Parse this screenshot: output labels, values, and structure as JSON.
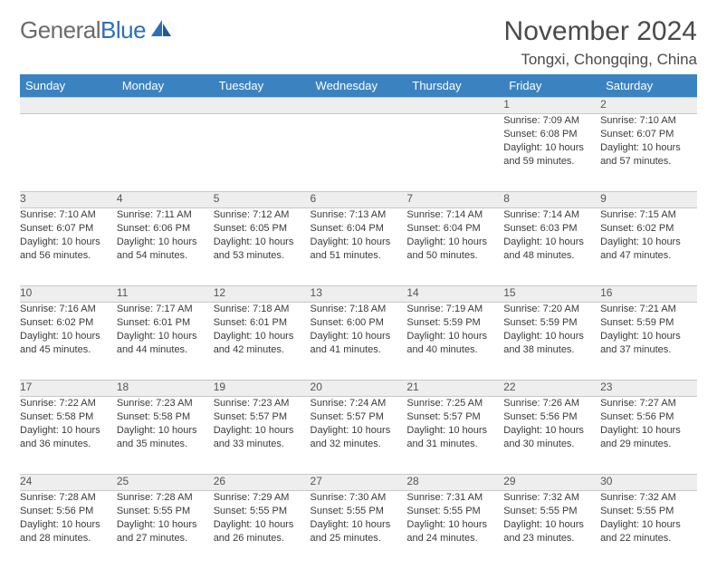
{
  "logo": {
    "word1": "General",
    "word2": "Blue"
  },
  "title": "November 2024",
  "location": "Tongxi, Chongqing, China",
  "colors": {
    "header_bg": "#3b83c0",
    "header_text": "#ffffff",
    "daynum_bg": "#eeeeee",
    "grid_line": "#c8c8c8",
    "body_text": "#3a3a3a",
    "title_text": "#4a4a4a",
    "logo_gray": "#6b6b6b",
    "logo_blue": "#2e6fb4",
    "page_bg": "#ffffff"
  },
  "fonts": {
    "title_size": 30,
    "location_size": 17,
    "header_size": 13,
    "daynum_size": 12,
    "body_size": 11
  },
  "day_headers": [
    "Sunday",
    "Monday",
    "Tuesday",
    "Wednesday",
    "Thursday",
    "Friday",
    "Saturday"
  ],
  "weeks": [
    {
      "nums": [
        "",
        "",
        "",
        "",
        "",
        "1",
        "2"
      ],
      "cells": [
        [],
        [],
        [],
        [],
        [],
        [
          "Sunrise: 7:09 AM",
          "Sunset: 6:08 PM",
          "Daylight: 10 hours",
          "and 59 minutes."
        ],
        [
          "Sunrise: 7:10 AM",
          "Sunset: 6:07 PM",
          "Daylight: 10 hours",
          "and 57 minutes."
        ]
      ]
    },
    {
      "nums": [
        "3",
        "4",
        "5",
        "6",
        "7",
        "8",
        "9"
      ],
      "cells": [
        [
          "Sunrise: 7:10 AM",
          "Sunset: 6:07 PM",
          "Daylight: 10 hours",
          "and 56 minutes."
        ],
        [
          "Sunrise: 7:11 AM",
          "Sunset: 6:06 PM",
          "Daylight: 10 hours",
          "and 54 minutes."
        ],
        [
          "Sunrise: 7:12 AM",
          "Sunset: 6:05 PM",
          "Daylight: 10 hours",
          "and 53 minutes."
        ],
        [
          "Sunrise: 7:13 AM",
          "Sunset: 6:04 PM",
          "Daylight: 10 hours",
          "and 51 minutes."
        ],
        [
          "Sunrise: 7:14 AM",
          "Sunset: 6:04 PM",
          "Daylight: 10 hours",
          "and 50 minutes."
        ],
        [
          "Sunrise: 7:14 AM",
          "Sunset: 6:03 PM",
          "Daylight: 10 hours",
          "and 48 minutes."
        ],
        [
          "Sunrise: 7:15 AM",
          "Sunset: 6:02 PM",
          "Daylight: 10 hours",
          "and 47 minutes."
        ]
      ]
    },
    {
      "nums": [
        "10",
        "11",
        "12",
        "13",
        "14",
        "15",
        "16"
      ],
      "cells": [
        [
          "Sunrise: 7:16 AM",
          "Sunset: 6:02 PM",
          "Daylight: 10 hours",
          "and 45 minutes."
        ],
        [
          "Sunrise: 7:17 AM",
          "Sunset: 6:01 PM",
          "Daylight: 10 hours",
          "and 44 minutes."
        ],
        [
          "Sunrise: 7:18 AM",
          "Sunset: 6:01 PM",
          "Daylight: 10 hours",
          "and 42 minutes."
        ],
        [
          "Sunrise: 7:18 AM",
          "Sunset: 6:00 PM",
          "Daylight: 10 hours",
          "and 41 minutes."
        ],
        [
          "Sunrise: 7:19 AM",
          "Sunset: 5:59 PM",
          "Daylight: 10 hours",
          "and 40 minutes."
        ],
        [
          "Sunrise: 7:20 AM",
          "Sunset: 5:59 PM",
          "Daylight: 10 hours",
          "and 38 minutes."
        ],
        [
          "Sunrise: 7:21 AM",
          "Sunset: 5:59 PM",
          "Daylight: 10 hours",
          "and 37 minutes."
        ]
      ]
    },
    {
      "nums": [
        "17",
        "18",
        "19",
        "20",
        "21",
        "22",
        "23"
      ],
      "cells": [
        [
          "Sunrise: 7:22 AM",
          "Sunset: 5:58 PM",
          "Daylight: 10 hours",
          "and 36 minutes."
        ],
        [
          "Sunrise: 7:23 AM",
          "Sunset: 5:58 PM",
          "Daylight: 10 hours",
          "and 35 minutes."
        ],
        [
          "Sunrise: 7:23 AM",
          "Sunset: 5:57 PM",
          "Daylight: 10 hours",
          "and 33 minutes."
        ],
        [
          "Sunrise: 7:24 AM",
          "Sunset: 5:57 PM",
          "Daylight: 10 hours",
          "and 32 minutes."
        ],
        [
          "Sunrise: 7:25 AM",
          "Sunset: 5:57 PM",
          "Daylight: 10 hours",
          "and 31 minutes."
        ],
        [
          "Sunrise: 7:26 AM",
          "Sunset: 5:56 PM",
          "Daylight: 10 hours",
          "and 30 minutes."
        ],
        [
          "Sunrise: 7:27 AM",
          "Sunset: 5:56 PM",
          "Daylight: 10 hours",
          "and 29 minutes."
        ]
      ]
    },
    {
      "nums": [
        "24",
        "25",
        "26",
        "27",
        "28",
        "29",
        "30"
      ],
      "cells": [
        [
          "Sunrise: 7:28 AM",
          "Sunset: 5:56 PM",
          "Daylight: 10 hours",
          "and 28 minutes."
        ],
        [
          "Sunrise: 7:28 AM",
          "Sunset: 5:55 PM",
          "Daylight: 10 hours",
          "and 27 minutes."
        ],
        [
          "Sunrise: 7:29 AM",
          "Sunset: 5:55 PM",
          "Daylight: 10 hours",
          "and 26 minutes."
        ],
        [
          "Sunrise: 7:30 AM",
          "Sunset: 5:55 PM",
          "Daylight: 10 hours",
          "and 25 minutes."
        ],
        [
          "Sunrise: 7:31 AM",
          "Sunset: 5:55 PM",
          "Daylight: 10 hours",
          "and 24 minutes."
        ],
        [
          "Sunrise: 7:32 AM",
          "Sunset: 5:55 PM",
          "Daylight: 10 hours",
          "and 23 minutes."
        ],
        [
          "Sunrise: 7:32 AM",
          "Sunset: 5:55 PM",
          "Daylight: 10 hours",
          "and 22 minutes."
        ]
      ]
    }
  ]
}
